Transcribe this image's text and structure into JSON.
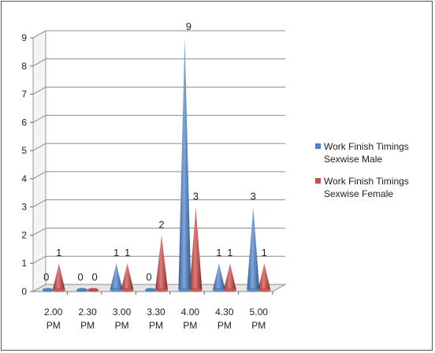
{
  "chart_data": {
    "type": "bar",
    "style": "3d-cone",
    "categories": [
      [
        "2.00",
        "PM"
      ],
      [
        "2.30",
        "PM"
      ],
      [
        "3.00",
        "PM"
      ],
      [
        "3.30",
        "PM"
      ],
      [
        "4.00",
        "PM"
      ],
      [
        "4.30",
        "PM"
      ],
      [
        "5.00",
        "PM"
      ]
    ],
    "series": [
      {
        "name": "Work Finish Timings Sexwise Male",
        "legend_lines": [
          "Work Finish Timings",
          "Sexwise Male"
        ],
        "color": "#4f81bd",
        "values": [
          0,
          0,
          1,
          0,
          9,
          1,
          3
        ]
      },
      {
        "name": "Work Finish Timings Sexwise Female",
        "legend_lines": [
          "Work Finish Timings",
          "Sexwise Female"
        ],
        "color": "#c0504d",
        "values": [
          1,
          0,
          1,
          2,
          3,
          1,
          1
        ]
      }
    ],
    "data_labels": [
      [
        "0",
        "1"
      ],
      [
        "0",
        "0"
      ],
      [
        "1",
        "1"
      ],
      [
        "0",
        "2"
      ],
      [
        "9",
        "3"
      ],
      [
        "1",
        "1"
      ],
      [
        "3",
        "1"
      ]
    ],
    "y_ticks": [
      0,
      1,
      2,
      3,
      4,
      5,
      6,
      7,
      8,
      9
    ],
    "ylim": [
      0,
      9
    ],
    "grid": true,
    "legend_position": "right"
  }
}
